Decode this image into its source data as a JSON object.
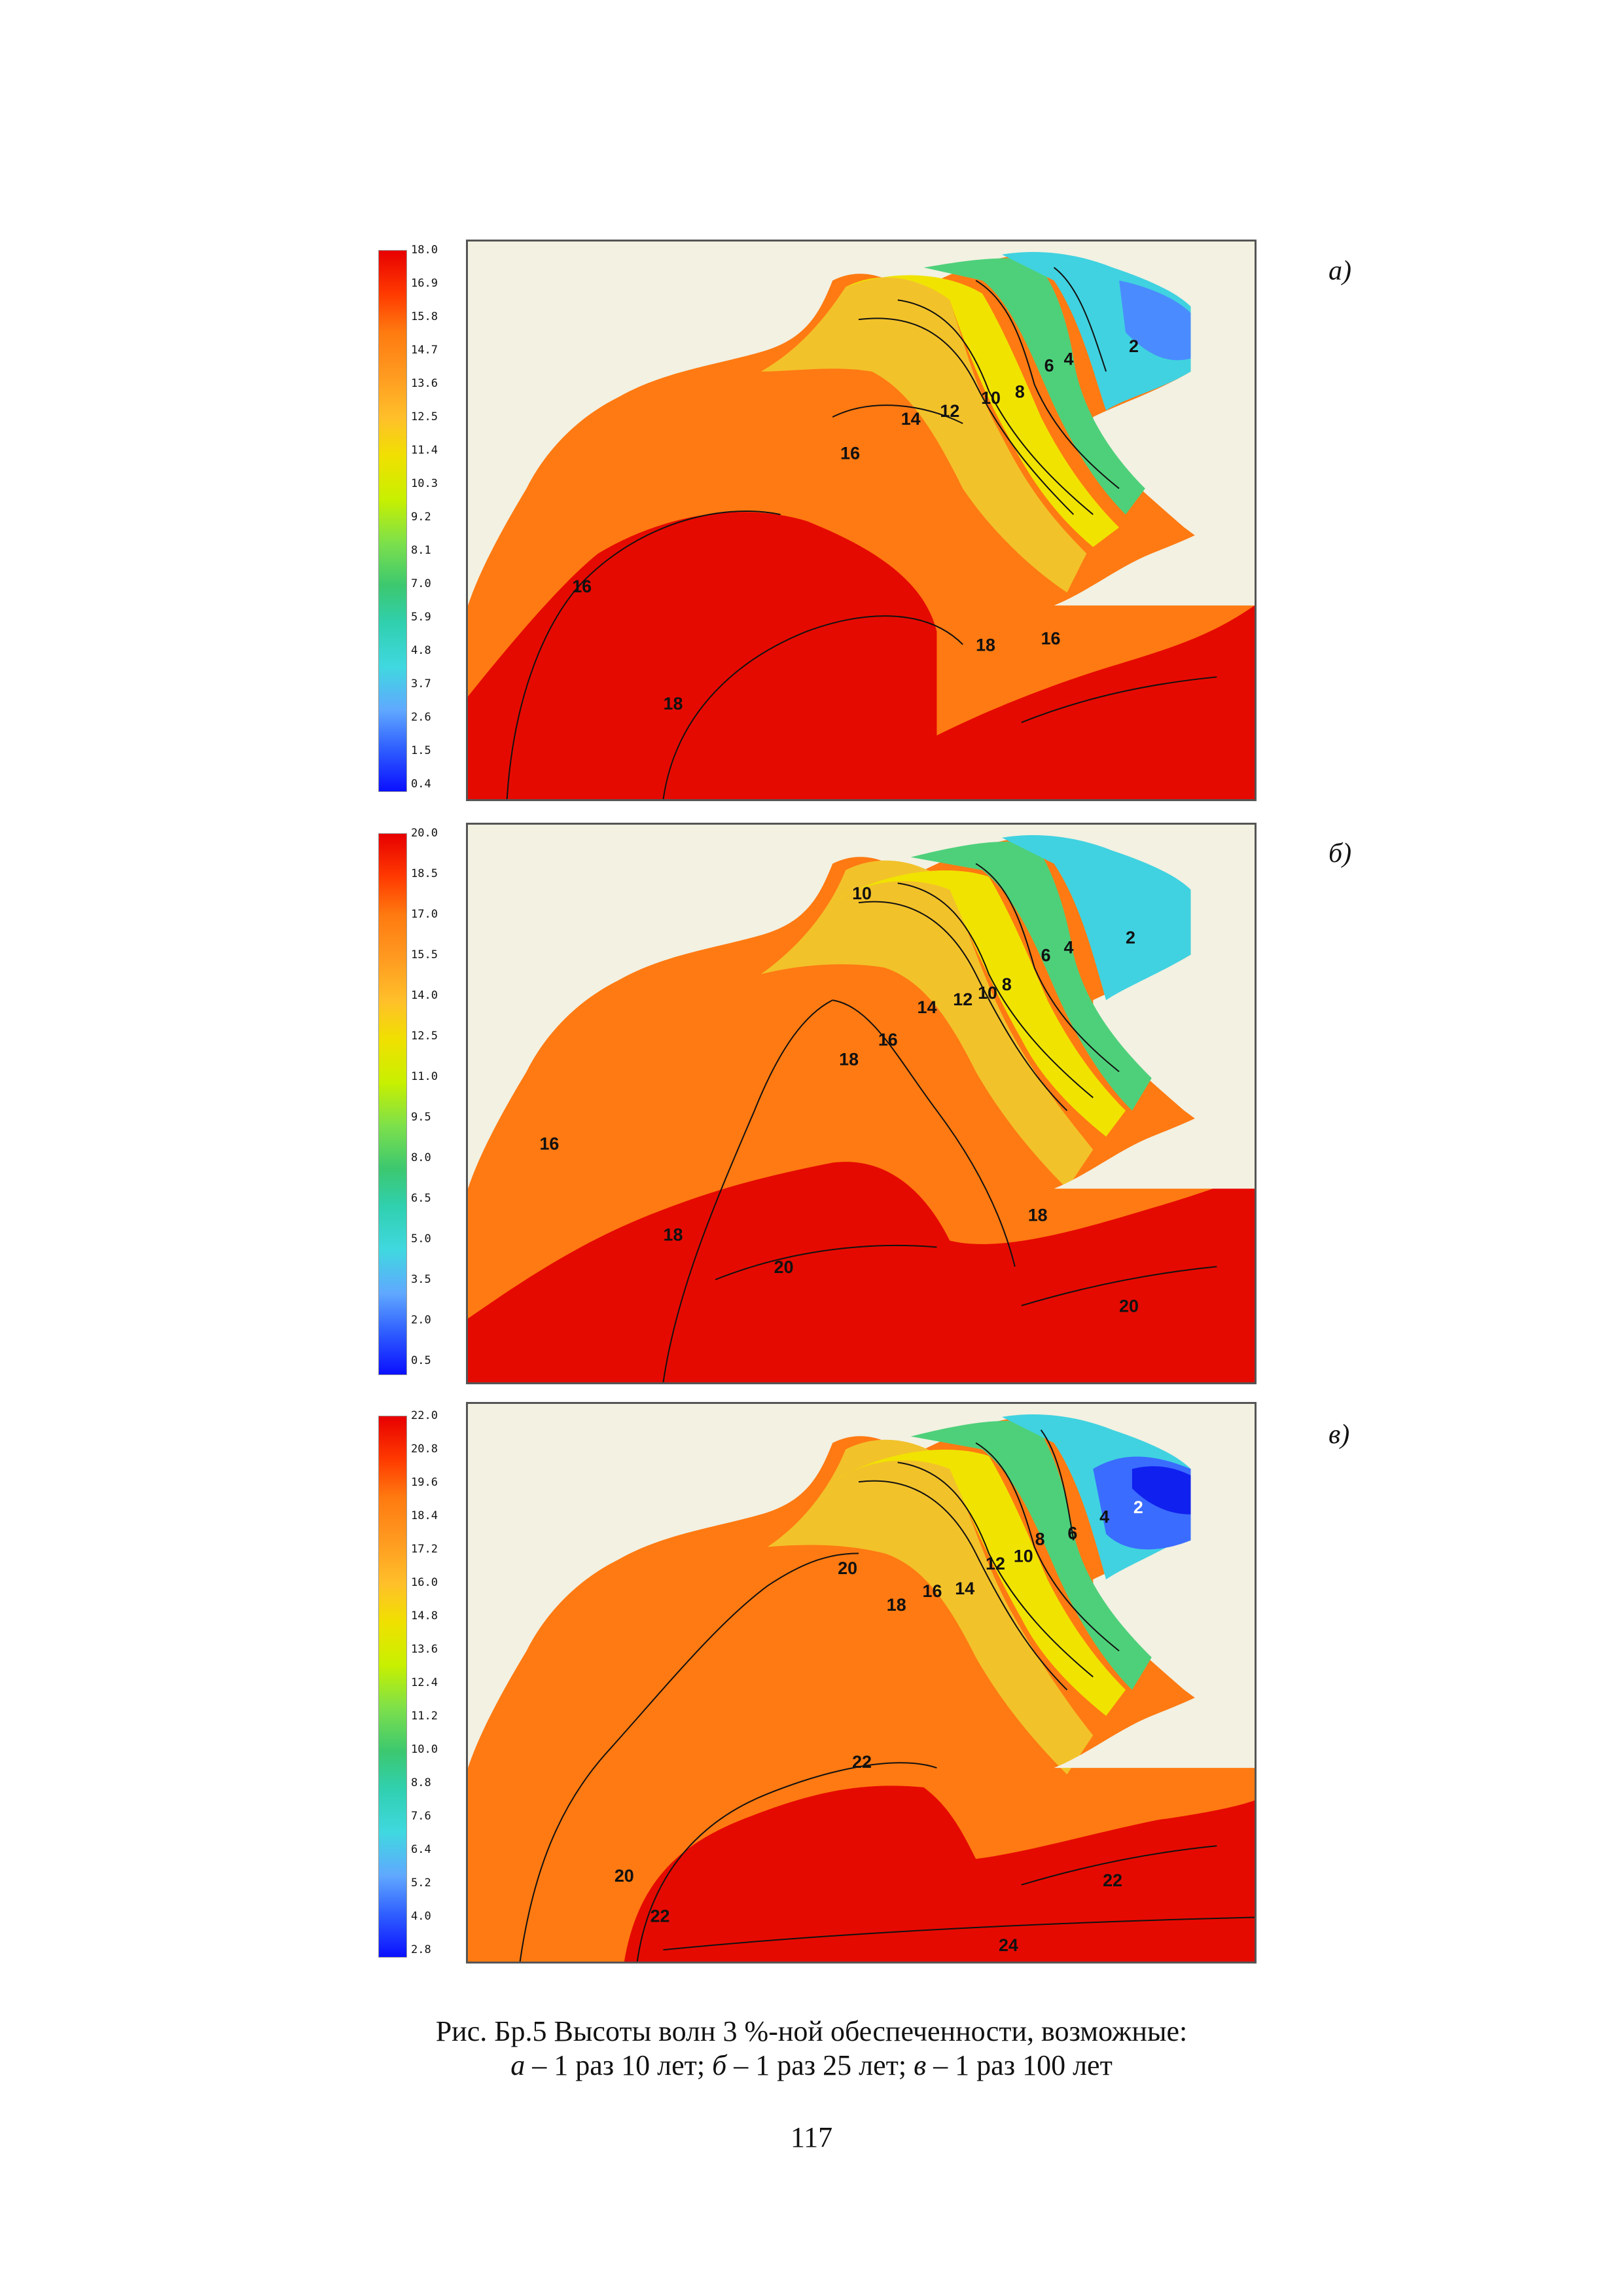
{
  "panels": [
    {
      "label": "а)",
      "scale_ticks": [
        "18.0",
        "16.9",
        "15.8",
        "14.7",
        "13.6",
        "12.5",
        "11.4",
        "10.3",
        "9.2",
        "8.1",
        "7.0",
        "5.9",
        "4.8",
        "3.7",
        "2.6",
        "1.5",
        "0.4"
      ],
      "contour_labels": [
        "16",
        "18",
        "16",
        "14",
        "12",
        "10",
        "8",
        "6",
        "4",
        "2",
        "16",
        "18"
      ]
    },
    {
      "label": "б)",
      "scale_ticks": [
        "20.0",
        "18.5",
        "17.0",
        "15.5",
        "14.0",
        "12.5",
        "11.0",
        "9.5",
        "8.0",
        "6.5",
        "5.0",
        "3.5",
        "2.0",
        "0.5"
      ],
      "contour_labels": [
        "10",
        "16",
        "18",
        "18",
        "20",
        "16",
        "14",
        "12",
        "10",
        "8",
        "6",
        "4",
        "2",
        "18",
        "20"
      ]
    },
    {
      "label": "в)",
      "scale_ticks": [
        "22.0",
        "20.8",
        "19.6",
        "18.4",
        "17.2",
        "16.0",
        "14.8",
        "13.6",
        "12.4",
        "11.2",
        "10.0",
        "8.8",
        "7.6",
        "6.4",
        "5.2",
        "4.0",
        "2.8"
      ],
      "contour_labels": [
        "20",
        "22",
        "20",
        "18",
        "16",
        "14",
        "12",
        "10",
        "8",
        "6",
        "4",
        "2",
        "22",
        "22",
        "24"
      ]
    }
  ],
  "caption": {
    "line1": "Рис. Бр.5 Высоты волн 3 %-ной обеспеченности, возможные:",
    "a_letter": "а",
    "a_text": " – 1 раз 10 лет; ",
    "b_letter": "б",
    "b_text": " – 1 раз 25 лет; ",
    "c_letter": "в",
    "c_text": " – 1 раз 100 лет"
  },
  "page_number": "117",
  "colors": {
    "land": "#f2f1e2",
    "scale": [
      "#e80000",
      "#ff3a00",
      "#ff7a10",
      "#ff9a20",
      "#ffc02a",
      "#f0e000",
      "#c8f000",
      "#7de04a",
      "#3cc870",
      "#30d0b0",
      "#40d8e0",
      "#60a8ff",
      "#3060ff",
      "#0a10ff"
    ]
  }
}
